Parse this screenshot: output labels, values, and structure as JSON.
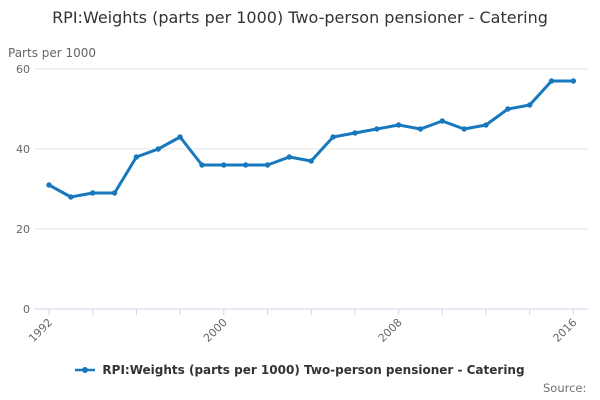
{
  "title": "RPI:Weights (parts per 1000) Two-person pensioner - Catering",
  "units_label": "Parts per 1000",
  "source_label": "Source:",
  "legend": {
    "label": "RPI:Weights (parts per 1000) Two-person pensioner - Catering"
  },
  "colors": {
    "line": "#1878bd",
    "grid": "#e6e6e6",
    "axis": "#ccd6eb",
    "tick_label": "#666666",
    "title": "#333333"
  },
  "chart_data": {
    "type": "line",
    "title": "RPI:Weights (parts per 1000) Two-person pensioner - Catering",
    "ylabel": "Parts per 1000",
    "xlabel": "",
    "x": [
      1992,
      1993,
      1994,
      1995,
      1996,
      1997,
      1998,
      1999,
      2000,
      2001,
      2002,
      2003,
      2004,
      2005,
      2006,
      2007,
      2008,
      2009,
      2010,
      2011,
      2012,
      2013,
      2014,
      2015,
      2016
    ],
    "series": [
      {
        "name": "RPI:Weights (parts per 1000) Two-person pensioner - Catering",
        "values": [
          31,
          28,
          29,
          29,
          38,
          40,
          43,
          36,
          36,
          36,
          36,
          38,
          37,
          43,
          44,
          45,
          46,
          45,
          47,
          45,
          46,
          50,
          51,
          57,
          57
        ]
      }
    ],
    "ylim": [
      0,
      60
    ],
    "yticks": [
      0,
      20,
      40,
      60
    ],
    "xticks_every": 2,
    "xtick_labels_shown": [
      1992,
      2000,
      2008,
      2016
    ],
    "grid": "horizontal",
    "legend_position": "bottom",
    "marker": "circle"
  }
}
